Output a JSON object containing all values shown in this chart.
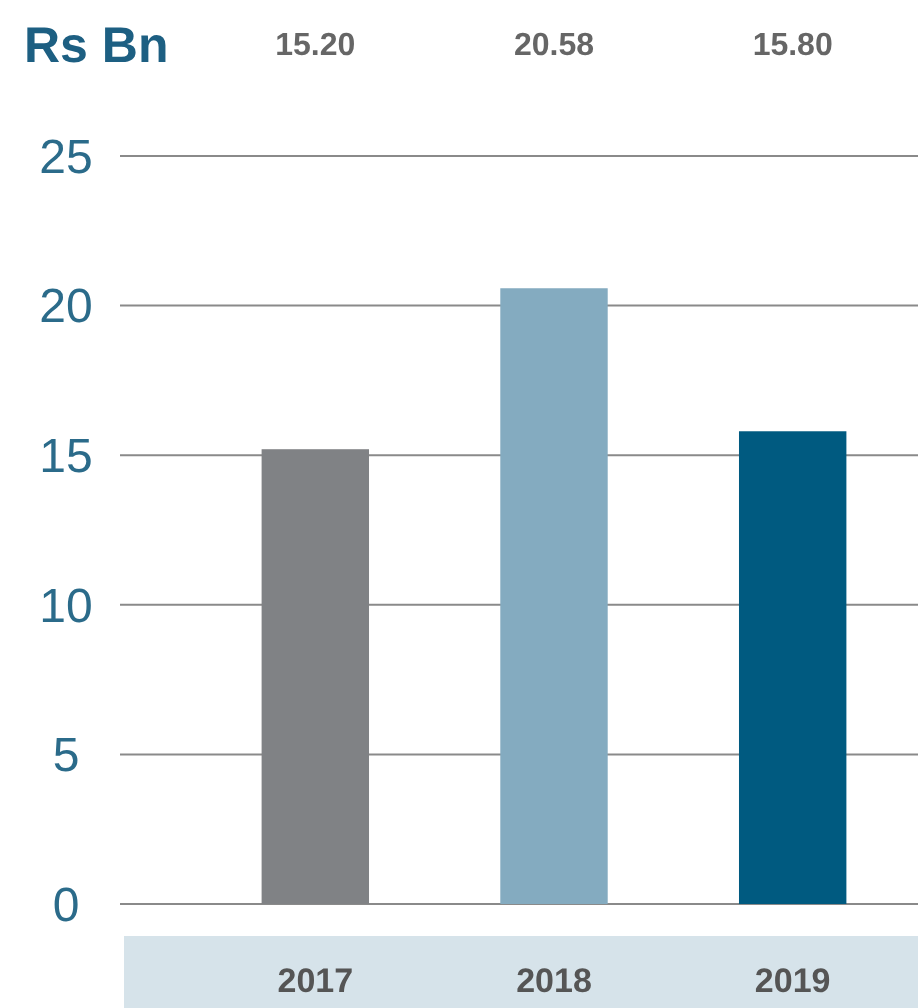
{
  "chart_data": {
    "type": "bar",
    "title": "Rs Bn",
    "categories": [
      "2017",
      "2018",
      "2019"
    ],
    "values": [
      15.2,
      20.58,
      15.8
    ],
    "colors": [
      "#808285",
      "#84abc0",
      "#005a80"
    ],
    "value_labels": [
      "15.20",
      "20.58",
      "15.80"
    ],
    "ylim": [
      0,
      25
    ],
    "yticks": [
      0,
      5,
      10,
      15,
      20,
      25
    ],
    "grid": "y"
  }
}
